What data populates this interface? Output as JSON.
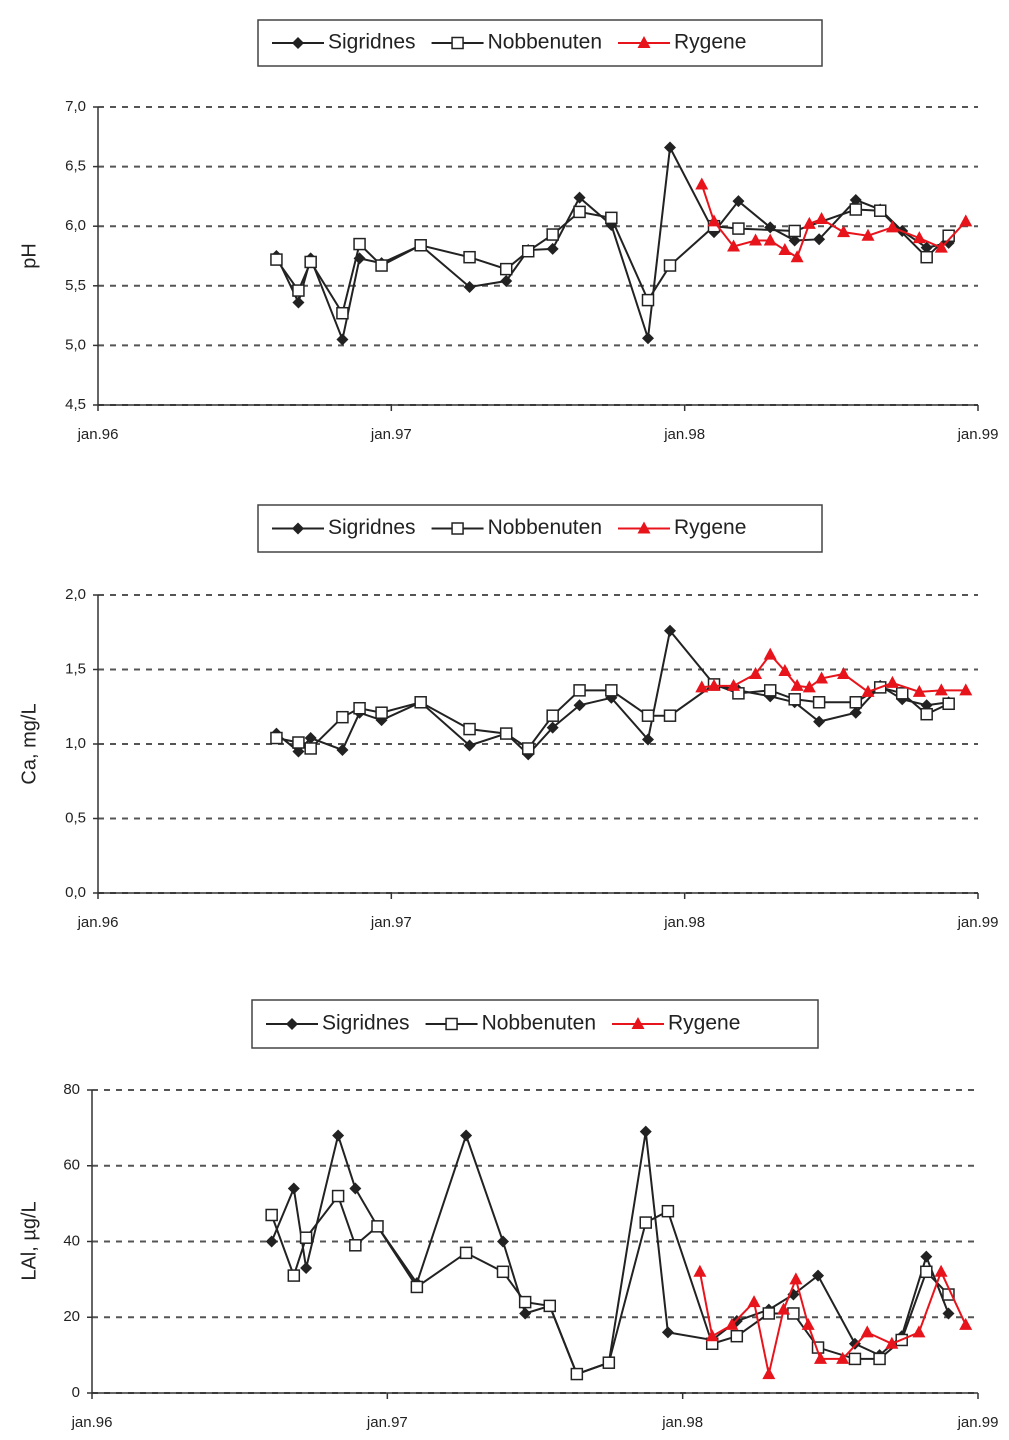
{
  "chart_data": [
    {
      "type": "line",
      "ylabel": "pH",
      "legend": "top",
      "grid": true,
      "xlim": [
        0,
        36
      ],
      "xticks": [
        {
          "value": 0,
          "label": "jan.96"
        },
        {
          "value": 12,
          "label": "jan.97"
        },
        {
          "value": 24,
          "label": "jan.98"
        },
        {
          "value": 36,
          "label": "jan.99"
        }
      ],
      "ylim": [
        4.5,
        7.0
      ],
      "yticks": [
        {
          "value": 4.5,
          "label": "4,5"
        },
        {
          "value": 5.0,
          "label": "5,0"
        },
        {
          "value": 5.5,
          "label": "5,5"
        },
        {
          "value": 6.0,
          "label": "6,0"
        },
        {
          "value": 6.5,
          "label": "6,5"
        },
        {
          "value": 7.0,
          "label": "7,0"
        }
      ],
      "series": [
        {
          "name": "Sigridnes",
          "color": "#222222",
          "marker": "diamond",
          "x": [
            7.3,
            8.2,
            8.7,
            10.0,
            10.7,
            11.6,
            13.2,
            15.2,
            16.7,
            17.6,
            18.6,
            19.7,
            21.0,
            22.5,
            23.4,
            25.2,
            26.2,
            27.5,
            28.5,
            29.5,
            31.0,
            32.0,
            32.9,
            33.9,
            34.8
          ],
          "values": [
            5.75,
            5.36,
            5.73,
            5.05,
            5.73,
            5.69,
            5.84,
            5.49,
            5.54,
            5.8,
            5.81,
            6.24,
            6.01,
            5.06,
            6.66,
            5.95,
            6.21,
            5.99,
            5.88,
            5.89,
            6.22,
            6.14,
            5.96,
            5.82,
            5.86
          ]
        },
        {
          "name": "Nobbenuten",
          "color": "#222222",
          "marker": "square",
          "x": [
            7.3,
            8.2,
            8.7,
            10.0,
            10.7,
            11.6,
            13.2,
            15.2,
            16.7,
            17.6,
            18.6,
            19.7,
            21.0,
            22.5,
            23.4,
            25.2,
            26.2,
            28.5,
            31.0,
            32.0,
            33.9,
            34.8
          ],
          "values": [
            5.72,
            5.46,
            5.7,
            5.27,
            5.85,
            5.67,
            5.84,
            5.74,
            5.64,
            5.79,
            5.93,
            6.12,
            6.07,
            5.38,
            5.67,
            6.0,
            5.98,
            5.96,
            6.14,
            6.13,
            5.74,
            5.92
          ]
        },
        {
          "name": "Rygene",
          "color": "#e8141c",
          "marker": "triangle",
          "x": [
            24.7,
            25.2,
            26.0,
            26.9,
            27.5,
            28.1,
            28.6,
            29.1,
            29.6,
            30.5,
            31.5,
            32.5,
            33.6,
            34.5,
            35.5
          ],
          "values": [
            6.35,
            6.04,
            5.83,
            5.88,
            5.88,
            5.8,
            5.74,
            6.02,
            6.06,
            5.95,
            5.92,
            5.99,
            5.9,
            5.82,
            6.04
          ]
        }
      ]
    },
    {
      "type": "line",
      "ylabel": "Ca, mg/L",
      "legend": "top",
      "grid": true,
      "xlim": [
        0,
        36
      ],
      "xticks": [
        {
          "value": 0,
          "label": "jan.96"
        },
        {
          "value": 12,
          "label": "jan.97"
        },
        {
          "value": 24,
          "label": "jan.98"
        },
        {
          "value": 36,
          "label": "jan.99"
        }
      ],
      "ylim": [
        0,
        2.0
      ],
      "yticks": [
        {
          "value": 0,
          "label": "0,0"
        },
        {
          "value": 0.5,
          "label": "0,5"
        },
        {
          "value": 1.0,
          "label": "1,0"
        },
        {
          "value": 1.5,
          "label": "1,5"
        },
        {
          "value": 2.0,
          "label": "2,0"
        }
      ],
      "series": [
        {
          "name": "Sigridnes",
          "color": "#222222",
          "marker": "diamond",
          "x": [
            7.3,
            8.2,
            8.7,
            10.0,
            10.7,
            11.6,
            13.2,
            15.2,
            16.7,
            17.6,
            18.6,
            19.7,
            21.0,
            22.5,
            23.4,
            25.2,
            26.2,
            27.5,
            28.5,
            29.5,
            31.0,
            32.0,
            32.9,
            33.9,
            34.8
          ],
          "values": [
            1.07,
            0.95,
            1.04,
            0.96,
            1.21,
            1.16,
            1.28,
            0.99,
            1.07,
            0.93,
            1.11,
            1.26,
            1.31,
            1.03,
            1.76,
            1.4,
            1.36,
            1.32,
            1.28,
            1.15,
            1.21,
            1.39,
            1.3,
            1.26,
            1.28
          ]
        },
        {
          "name": "Nobbenuten",
          "color": "#222222",
          "marker": "square",
          "x": [
            7.3,
            8.2,
            8.7,
            10.0,
            10.7,
            11.6,
            13.2,
            15.2,
            16.7,
            17.6,
            18.6,
            19.7,
            21.0,
            22.5,
            23.4,
            25.2,
            26.2,
            27.5,
            28.5,
            29.5,
            31.0,
            32.0,
            32.9,
            33.9,
            34.8
          ],
          "values": [
            1.04,
            1.01,
            0.97,
            1.18,
            1.24,
            1.21,
            1.28,
            1.1,
            1.07,
            0.97,
            1.19,
            1.36,
            1.36,
            1.19,
            1.19,
            1.4,
            1.34,
            1.36,
            1.3,
            1.28,
            1.28,
            1.38,
            1.34,
            1.2,
            1.27
          ]
        },
        {
          "name": "Rygene",
          "color": "#e8141c",
          "marker": "triangle",
          "x": [
            24.7,
            25.2,
            26.0,
            26.9,
            27.5,
            28.1,
            28.6,
            29.1,
            29.6,
            30.5,
            31.5,
            32.5,
            33.6,
            34.5,
            35.5
          ],
          "values": [
            1.38,
            1.39,
            1.39,
            1.47,
            1.6,
            1.49,
            1.39,
            1.38,
            1.44,
            1.47,
            1.35,
            1.41,
            1.35,
            1.36,
            1.36
          ]
        }
      ]
    },
    {
      "type": "line",
      "ylabel": "LAl, µg/L",
      "legend": "top",
      "grid": true,
      "xlim": [
        0,
        36
      ],
      "xticks": [
        {
          "value": 0,
          "label": "jan.96"
        },
        {
          "value": 12,
          "label": "jan.97"
        },
        {
          "value": 24,
          "label": "jan.98"
        },
        {
          "value": 36,
          "label": "jan.99"
        }
      ],
      "ylim": [
        0,
        80
      ],
      "yticks": [
        0,
        20,
        40,
        60,
        80
      ],
      "series": [
        {
          "name": "Sigridnes",
          "color": "#222222",
          "marker": "diamond",
          "x": [
            7.3,
            8.2,
            8.7,
            10.0,
            10.7,
            11.6,
            13.2,
            15.2,
            16.7,
            17.6,
            18.6,
            19.7,
            21.0,
            22.5,
            23.4,
            25.2,
            26.2,
            27.5,
            28.5,
            29.5,
            31.0,
            32.0,
            32.9,
            33.9,
            34.8
          ],
          "values": [
            40,
            54,
            33,
            68,
            54,
            44,
            29,
            68,
            40,
            21,
            23,
            5,
            8,
            69,
            16,
            14,
            19,
            22,
            26,
            31,
            13,
            10,
            15,
            36,
            21
          ]
        },
        {
          "name": "Nobbenuten",
          "color": "#222222",
          "marker": "square",
          "x": [
            7.3,
            8.2,
            8.7,
            10.0,
            10.7,
            11.6,
            13.2,
            15.2,
            16.7,
            17.6,
            18.6,
            19.7,
            21.0,
            22.5,
            23.4,
            25.2,
            26.2,
            27.5,
            28.5,
            29.5,
            31.0,
            32.0,
            32.9,
            33.9,
            34.8
          ],
          "values": [
            47,
            31,
            41,
            52,
            39,
            44,
            28,
            37,
            32,
            24,
            23,
            5,
            8,
            45,
            48,
            13,
            15,
            21,
            21,
            12,
            9,
            9,
            14,
            32,
            26
          ]
        },
        {
          "name": "Rygene",
          "color": "#e8141c",
          "marker": "triangle",
          "x": [
            24.7,
            25.2,
            26.0,
            26.9,
            27.5,
            28.1,
            28.6,
            29.1,
            29.6,
            30.5,
            31.5,
            32.5,
            33.6,
            34.5,
            35.5
          ],
          "values": [
            32,
            15,
            18,
            24,
            5,
            22,
            30,
            18,
            9,
            9,
            16,
            13,
            16,
            32,
            18
          ]
        }
      ]
    }
  ]
}
